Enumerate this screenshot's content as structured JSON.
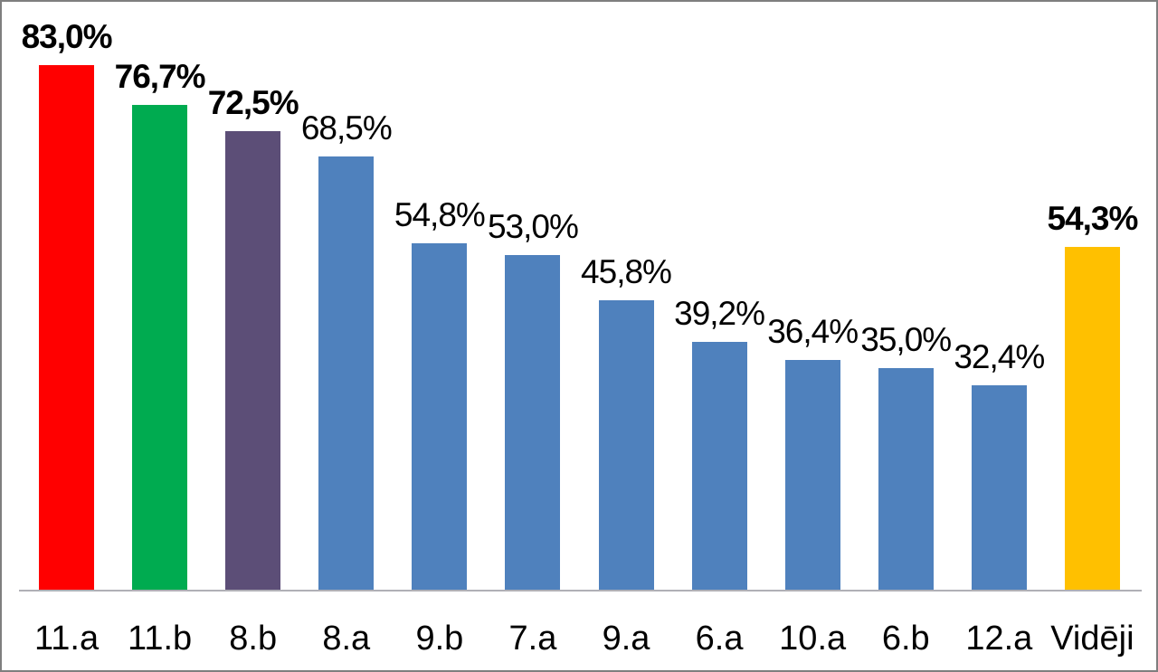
{
  "chart_data": {
    "type": "bar",
    "title": "",
    "xlabel": "",
    "ylabel": "",
    "categories": [
      "11.a",
      "11.b",
      "8.b",
      "8.a",
      "9.b",
      "7.a",
      "9.a",
      "6.a",
      "10.a",
      "6.b",
      "12.a",
      "Vidēji"
    ],
    "values": [
      83.0,
      76.7,
      72.5,
      68.5,
      54.8,
      53.0,
      45.8,
      39.2,
      36.4,
      35.0,
      32.4,
      54.3
    ],
    "value_labels": [
      "83,0%",
      "76,7%",
      "72,5%",
      "68,5%",
      "54,8%",
      "53,0%",
      "45,8%",
      "39,2%",
      "36,4%",
      "35,0%",
      "32,4%",
      "54,3%"
    ],
    "bar_colors": [
      "#FF0000",
      "#00AB50",
      "#5C4E77",
      "#4F81BD",
      "#4F81BD",
      "#4F81BD",
      "#4F81BD",
      "#4F81BD",
      "#4F81BD",
      "#4F81BD",
      "#4F81BD",
      "#FFC000"
    ],
    "emphasized_labels": [
      true,
      true,
      true,
      false,
      false,
      false,
      false,
      false,
      false,
      false,
      false,
      true
    ],
    "ylim": [
      0,
      90
    ],
    "grid": false,
    "legend": false,
    "number_format": "comma-decimal-percent",
    "value_label_position": "above-bar",
    "axis_line_color": "#B0B0B6"
  },
  "colors": {
    "default_bar": "#4F81BD",
    "highlight_first": "#FF0000",
    "highlight_second": "#00AB50",
    "highlight_third": "#5C4E77",
    "average_bar": "#FFC000",
    "axis_line": "#B0B0B6",
    "frame_border": "#7F7F7F",
    "text": "#000000",
    "background": "#FFFFFF"
  }
}
